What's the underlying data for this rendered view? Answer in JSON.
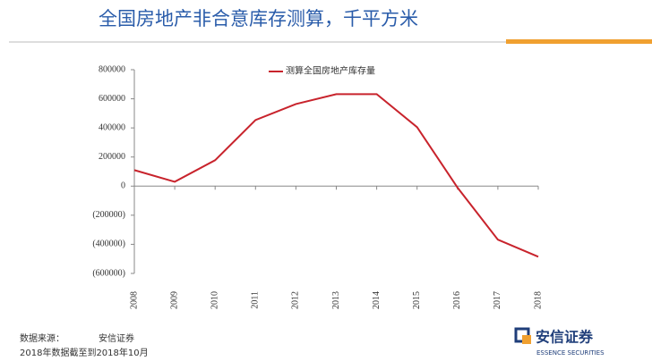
{
  "header": {
    "title": "全国房地产非合意库存测算，千平方米"
  },
  "chart_data": {
    "type": "line",
    "categories": [
      "2008",
      "2009",
      "2010",
      "2011",
      "2012",
      "2013",
      "2014",
      "2015",
      "2016",
      "2017",
      "2018"
    ],
    "series": [
      {
        "name": "测算全国房地产库存量",
        "color": "#c8232c",
        "values": [
          110000,
          30000,
          178000,
          454000,
          564000,
          632000,
          632000,
          405000,
          -10000,
          -368000,
          -485000
        ]
      }
    ],
    "ylim": [
      -600000,
      800000
    ],
    "yticks": [
      {
        "value": -600000,
        "label": "(600000)"
      },
      {
        "value": -400000,
        "label": "(400000)"
      },
      {
        "value": -200000,
        "label": "(200000)"
      },
      0,
      200000,
      400000,
      600000,
      800000
    ],
    "grid": false
  },
  "footer": {
    "source_label": "数据来源：",
    "source": "安信证券",
    "note": "2018年数据截至到2018年10月"
  },
  "logo": {
    "name": "安信证券",
    "subtitle": "ESSENCE SECURITIES"
  }
}
